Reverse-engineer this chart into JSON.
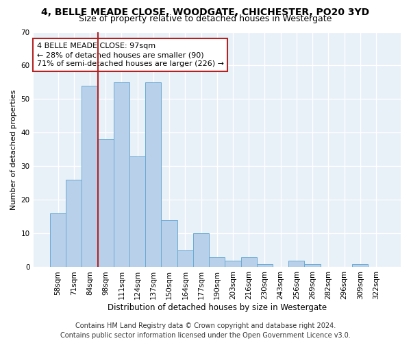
{
  "title": "4, BELLE MEADE CLOSE, WOODGATE, CHICHESTER, PO20 3YD",
  "subtitle": "Size of property relative to detached houses in Westergate",
  "xlabel": "Distribution of detached houses by size in Westergate",
  "ylabel": "Number of detached properties",
  "categories": [
    "58sqm",
    "71sqm",
    "84sqm",
    "98sqm",
    "111sqm",
    "124sqm",
    "137sqm",
    "150sqm",
    "164sqm",
    "177sqm",
    "190sqm",
    "203sqm",
    "216sqm",
    "230sqm",
    "243sqm",
    "256sqm",
    "269sqm",
    "282sqm",
    "296sqm",
    "309sqm",
    "322sqm"
  ],
  "values": [
    16,
    26,
    54,
    38,
    55,
    33,
    55,
    14,
    5,
    10,
    3,
    2,
    3,
    1,
    0,
    2,
    1,
    0,
    0,
    1,
    0
  ],
  "bar_color": "#b8d0ea",
  "bar_edge_color": "#6aaad4",
  "bg_color": "#e8f0f8",
  "grid_color": "#ffffff",
  "vline_color": "#b22222",
  "vline_x_index": 2.5,
  "annotation_text": "4 BELLE MEADE CLOSE: 97sqm\n← 28% of detached houses are smaller (90)\n71% of semi-detached houses are larger (226) →",
  "annotation_box_color": "#ffffff",
  "annotation_box_edge": "#b22222",
  "footer1": "Contains HM Land Registry data © Crown copyright and database right 2024.",
  "footer2": "Contains public sector information licensed under the Open Government Licence v3.0.",
  "title_fontsize": 10,
  "subtitle_fontsize": 9,
  "xlabel_fontsize": 8.5,
  "ylabel_fontsize": 8,
  "tick_fontsize": 7.5,
  "annotation_fontsize": 8,
  "footer_fontsize": 7,
  "ylim": [
    0,
    70
  ]
}
